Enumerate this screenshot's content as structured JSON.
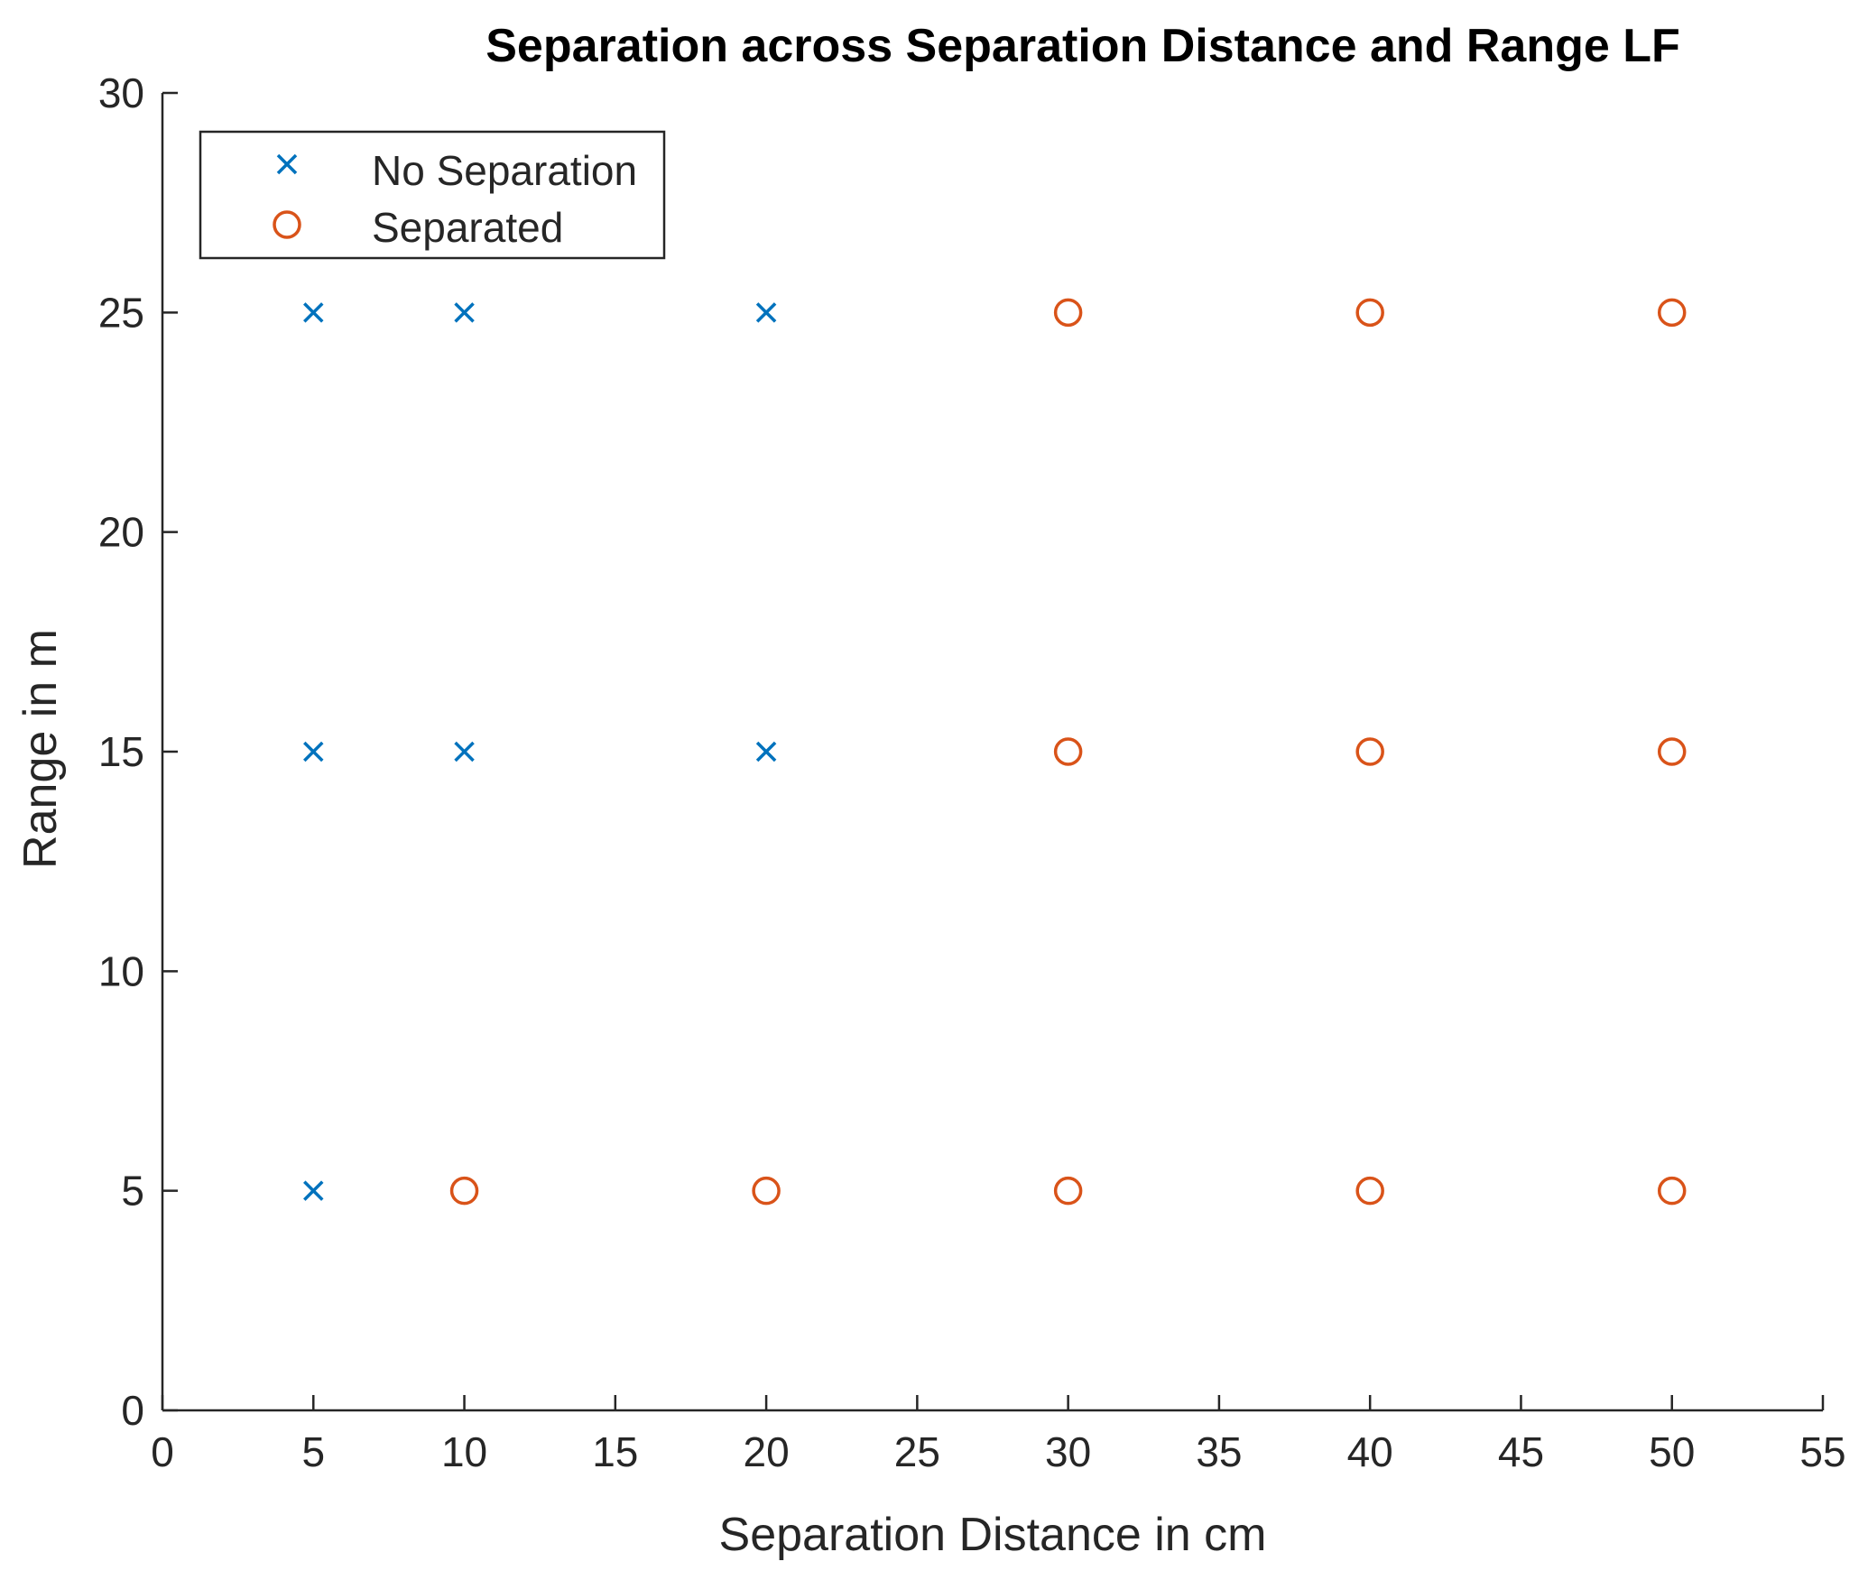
{
  "chart_data": {
    "type": "scatter",
    "title": "Separation across Separation Distance and Range LF",
    "xlabel": "Separation Distance in cm",
    "ylabel": "Range in m",
    "xlim": [
      0,
      55
    ],
    "ylim": [
      0,
      30
    ],
    "xticks": [
      0,
      5,
      10,
      15,
      20,
      25,
      30,
      35,
      40,
      45,
      50,
      55
    ],
    "yticks": [
      0,
      5,
      10,
      15,
      20,
      25,
      30
    ],
    "grid": false,
    "legend_position": "top-left",
    "series": [
      {
        "name": "No Separation",
        "marker": "x",
        "color": "#0072BD",
        "x": [
          5,
          10,
          20,
          5,
          10,
          20,
          5
        ],
        "y": [
          25,
          25,
          25,
          15,
          15,
          15,
          5
        ]
      },
      {
        "name": "Separated",
        "marker": "o",
        "color": "#D95319",
        "x": [
          30,
          40,
          50,
          30,
          40,
          50,
          10,
          20,
          30,
          40,
          50
        ],
        "y": [
          25,
          25,
          25,
          15,
          15,
          15,
          5,
          5,
          5,
          5,
          5
        ]
      }
    ]
  }
}
